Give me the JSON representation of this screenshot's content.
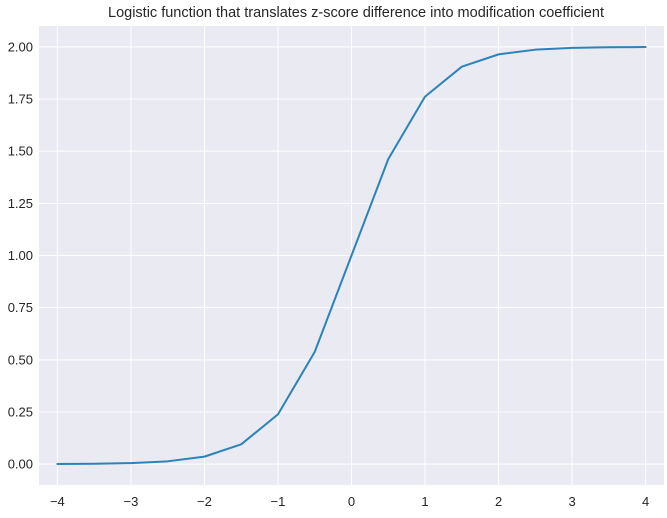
{
  "chart_data": {
    "type": "line",
    "title": "Logistic function that translates z-score difference into modification coefficient",
    "xlabel": "",
    "ylabel": "",
    "xlim": [
      -4.25,
      4.25
    ],
    "ylim": [
      -0.1,
      2.1
    ],
    "x_ticks": [
      -4,
      -3,
      -2,
      -1,
      0,
      1,
      2,
      3,
      4
    ],
    "x_tick_labels": [
      "−4",
      "−3",
      "−2",
      "−1",
      "0",
      "1",
      "2",
      "3",
      "4"
    ],
    "y_ticks": [
      0.0,
      0.25,
      0.5,
      0.75,
      1.0,
      1.25,
      1.5,
      1.75,
      2.0
    ],
    "y_tick_labels": [
      "0.00",
      "0.25",
      "0.50",
      "0.75",
      "1.00",
      "1.25",
      "1.50",
      "1.75",
      "2.00"
    ],
    "grid": true,
    "legend": "none",
    "colors": {
      "background": "#eaeaf2",
      "grid": "#ffffff",
      "line": "#2b83ba"
    },
    "series": [
      {
        "x": [
          -4.0,
          -3.5,
          -3.0,
          -2.5,
          -2.0,
          -1.5,
          -1.0,
          -0.5,
          0.0,
          0.5,
          1.0,
          1.5,
          2.0,
          2.5,
          3.0,
          3.5,
          4.0
        ],
        "values": [
          0.0007,
          0.0018,
          0.0049,
          0.0135,
          0.036,
          0.095,
          0.2384,
          0.5379,
          1.0,
          1.4621,
          1.7616,
          1.905,
          1.964,
          1.9865,
          1.9951,
          1.9982,
          1.9993
        ]
      }
    ]
  }
}
